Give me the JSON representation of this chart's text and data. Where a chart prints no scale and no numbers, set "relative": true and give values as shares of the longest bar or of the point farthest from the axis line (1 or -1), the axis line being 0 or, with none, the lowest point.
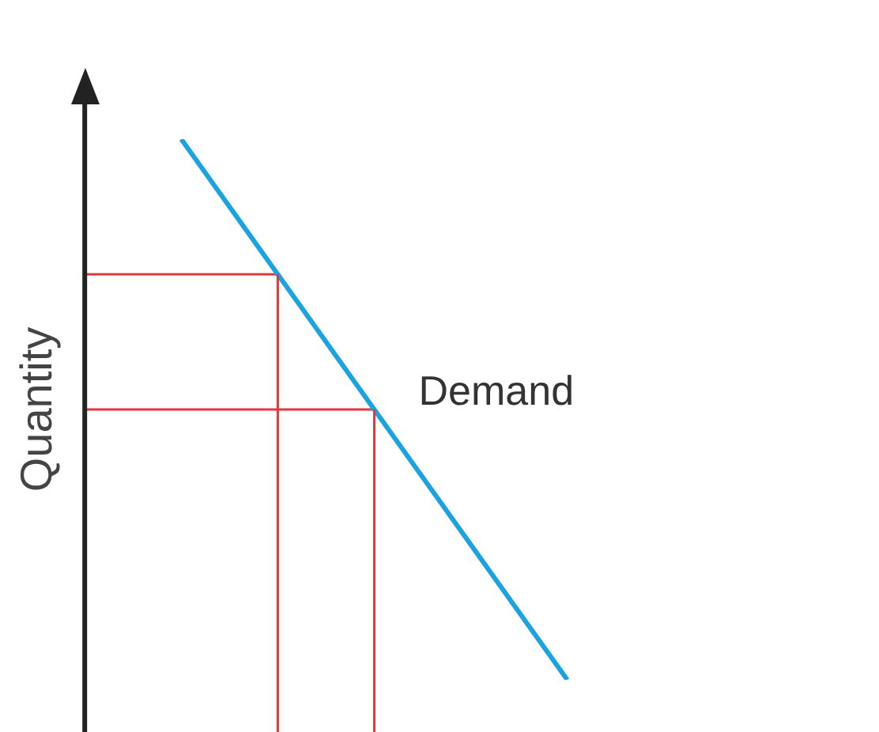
{
  "chart_data": {
    "type": "line",
    "relative": true,
    "ylabel": "Quantity",
    "legend": false,
    "grid": false,
    "marker": "none",
    "tick_labels": false,
    "annotations": [
      "Demand"
    ],
    "categories": [
      null,
      null,
      null,
      null,
      null,
      null,
      null,
      null,
      null
    ],
    "series": [
      {
        "color": "#1aa3e0",
        "values": [
          null,
          1,
          0.75,
          0.5,
          0.25,
          0,
          null,
          null,
          null
        ]
      },
      {
        "color": "#e0383c",
        "values": [
          0.75,
          0.75,
          0.75,
          null,
          null,
          null,
          null,
          null,
          null
        ]
      },
      {
        "color": "#e0383c",
        "values": [
          0.5,
          0.5,
          0.5,
          0.5,
          null,
          null,
          null,
          null,
          null
        ]
      }
    ]
  }
}
